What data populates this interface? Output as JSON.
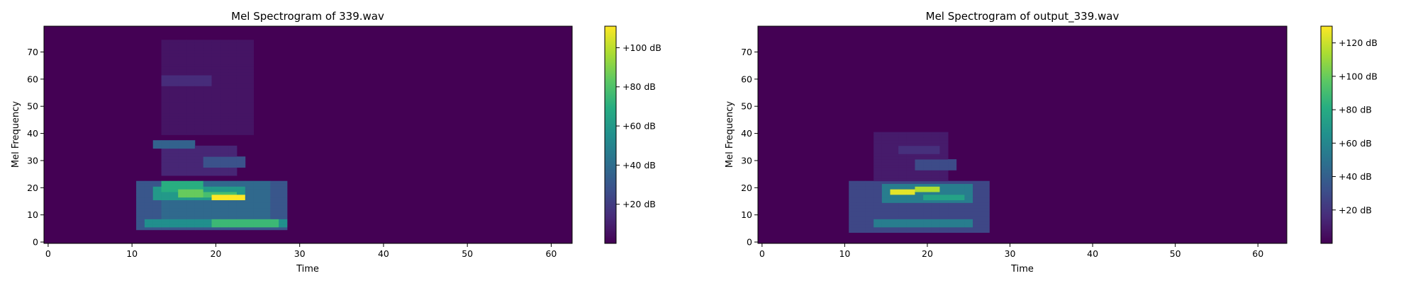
{
  "chart_data": [
    {
      "type": "heatmap",
      "title": "Mel Spectrogram of 339.wav",
      "xlabel": "Time",
      "ylabel": "Mel Frequency",
      "xlim": [
        -0.5,
        62.5
      ],
      "ylim": [
        -0.5,
        79.5
      ],
      "xticks": [
        0,
        10,
        20,
        30,
        40,
        50,
        60
      ],
      "yticks": [
        0,
        10,
        20,
        30,
        40,
        50,
        60,
        70
      ],
      "colormap": "viridis",
      "background_color": "#440154",
      "colorbar": {
        "min": 0,
        "max": 111,
        "ticks": [
          20,
          40,
          60,
          80,
          100
        ],
        "tick_labels": [
          "+20 dB",
          "+40 dB",
          "+60 dB",
          "+80 dB",
          "+100 dB"
        ]
      },
      "blobs": [
        {
          "t": [
            11,
            28
          ],
          "f": [
            5,
            22
          ],
          "v": 30
        },
        {
          "t": [
            14,
            26
          ],
          "f": [
            8,
            22
          ],
          "v": 38
        },
        {
          "t": [
            12,
            28
          ],
          "f": [
            6,
            8
          ],
          "v": 55
        },
        {
          "t": [
            20,
            27
          ],
          "f": [
            6,
            8
          ],
          "v": 75
        },
        {
          "t": [
            13,
            23
          ],
          "f": [
            16,
            20
          ],
          "v": 60
        },
        {
          "t": [
            14,
            18
          ],
          "f": [
            19,
            22
          ],
          "v": 70
        },
        {
          "t": [
            16,
            18
          ],
          "f": [
            17,
            19
          ],
          "v": 85
        },
        {
          "t": [
            19,
            22
          ],
          "f": [
            17,
            18
          ],
          "v": 78
        },
        {
          "t": [
            20,
            23
          ],
          "f": [
            16,
            17
          ],
          "v": 111
        },
        {
          "t": [
            13,
            17
          ],
          "f": [
            35,
            37
          ],
          "v": 35
        },
        {
          "t": [
            19,
            23
          ],
          "f": [
            28,
            31
          ],
          "v": 28
        },
        {
          "t": [
            14,
            19
          ],
          "f": [
            58,
            61
          ],
          "v": 14
        },
        {
          "t": [
            14,
            22
          ],
          "f": [
            25,
            35
          ],
          "v": 12
        },
        {
          "t": [
            14,
            24
          ],
          "f": [
            40,
            74
          ],
          "v": 6
        },
        {
          "t": [
            11,
            12
          ],
          "f": [
            13,
            16
          ],
          "v": 25
        }
      ]
    },
    {
      "type": "heatmap",
      "title": "Mel Spectrogram of output_339.wav",
      "xlabel": "Time",
      "ylabel": "Mel Frequency",
      "xlim": [
        -0.5,
        63.5
      ],
      "ylim": [
        -0.5,
        79.5
      ],
      "xticks": [
        0,
        10,
        20,
        30,
        40,
        50,
        60
      ],
      "yticks": [
        0,
        10,
        20,
        30,
        40,
        50,
        60,
        70
      ],
      "colormap": "viridis",
      "background_color": "#440154",
      "colorbar": {
        "min": 0,
        "max": 130,
        "ticks": [
          20,
          40,
          60,
          80,
          100,
          120
        ],
        "tick_labels": [
          "+20 dB",
          "+40 dB",
          "+60 dB",
          "+80 dB",
          "+100 dB",
          "+120 dB"
        ]
      },
      "blobs": [
        {
          "t": [
            11,
            27
          ],
          "f": [
            4,
            22
          ],
          "v": 28
        },
        {
          "t": [
            14,
            25
          ],
          "f": [
            6,
            8
          ],
          "v": 55
        },
        {
          "t": [
            15,
            25
          ],
          "f": [
            15,
            21
          ],
          "v": 55
        },
        {
          "t": [
            16,
            18
          ],
          "f": [
            18,
            19
          ],
          "v": 125
        },
        {
          "t": [
            19,
            21
          ],
          "f": [
            19,
            20
          ],
          "v": 115
        },
        {
          "t": [
            20,
            24
          ],
          "f": [
            16,
            17
          ],
          "v": 75
        },
        {
          "t": [
            19,
            23
          ],
          "f": [
            27,
            30
          ],
          "v": 30
        },
        {
          "t": [
            17,
            21
          ],
          "f": [
            33,
            35
          ],
          "v": 18
        },
        {
          "t": [
            14,
            22
          ],
          "f": [
            22,
            40
          ],
          "v": 10
        }
      ]
    }
  ]
}
